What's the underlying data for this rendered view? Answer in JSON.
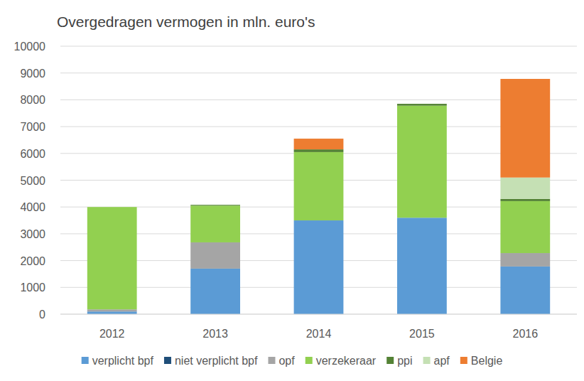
{
  "chart_data": {
    "type": "bar",
    "title": "Overgedragen vermogen in mln. euro's",
    "categories": [
      "2012",
      "2013",
      "2014",
      "2015",
      "2016"
    ],
    "stacked": true,
    "grid": true,
    "legend": "bottom",
    "ylim": [
      0,
      10000
    ],
    "yticks": [
      0,
      1000,
      2000,
      3000,
      4000,
      5000,
      6000,
      7000,
      8000,
      9000,
      10000
    ],
    "series": [
      {
        "name": "verplicht bpf",
        "color": "#5b9bd5",
        "values": [
          100,
          1700,
          3500,
          3600,
          1780
        ]
      },
      {
        "name": "niet verplicht bpf",
        "color": "#1f4e79",
        "values": [
          0,
          0,
          0,
          0,
          0
        ]
      },
      {
        "name": "opf",
        "color": "#a5a5a5",
        "values": [
          80,
          980,
          0,
          0,
          500
        ]
      },
      {
        "name": "verzekeraar",
        "color": "#92d050",
        "values": [
          3820,
          1370,
          2550,
          4180,
          1940
        ]
      },
      {
        "name": "ppi",
        "color": "#548235",
        "values": [
          0,
          30,
          100,
          70,
          80
        ]
      },
      {
        "name": "apf",
        "color": "#c5e0b4",
        "values": [
          0,
          0,
          0,
          0,
          800
        ]
      },
      {
        "name": "Belgie",
        "color": "#ed7d31",
        "values": [
          0,
          0,
          400,
          0,
          3680
        ]
      }
    ]
  }
}
